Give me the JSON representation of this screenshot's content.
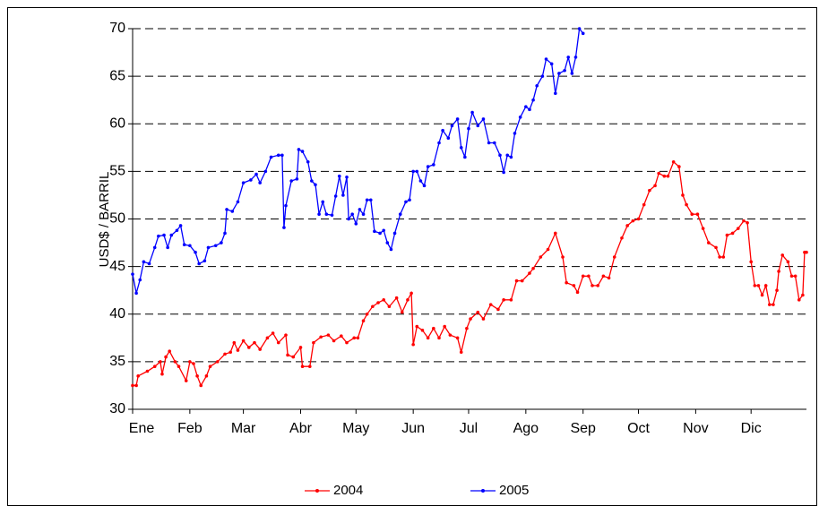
{
  "chart_data": {
    "type": "line",
    "y_label": "USD$ / BARRIL",
    "xlim": [
      0,
      365
    ],
    "xticks": [
      {
        "value": 0,
        "label": "Ene"
      },
      {
        "value": 31,
        "label": "Feb"
      },
      {
        "value": 60,
        "label": "Mar"
      },
      {
        "value": 91,
        "label": "Abr"
      },
      {
        "value": 121,
        "label": "May"
      },
      {
        "value": 152,
        "label": "Jun"
      },
      {
        "value": 182,
        "label": "Jul"
      },
      {
        "value": 213,
        "label": "Ago"
      },
      {
        "value": 244,
        "label": "Sep"
      },
      {
        "value": 274,
        "label": "Oct"
      },
      {
        "value": 305,
        "label": "Nov"
      },
      {
        "value": 335,
        "label": "Dic"
      }
    ],
    "ylim": [
      30,
      70
    ],
    "yticks": [
      30,
      35,
      40,
      45,
      50,
      55,
      60,
      65,
      70
    ],
    "grid": true,
    "legend": "bottom",
    "series": [
      {
        "name": "2004",
        "color": "#ff0000",
        "x": [
          0,
          2,
          3,
          8,
          12,
          15,
          16,
          18,
          20,
          23,
          25,
          29,
          31,
          33,
          35,
          37,
          40,
          42,
          46,
          50,
          53,
          55,
          57,
          60,
          63,
          66,
          69,
          73,
          76,
          79,
          83,
          84,
          87,
          91,
          92,
          96,
          98,
          102,
          106,
          109,
          113,
          116,
          120,
          122,
          125,
          127,
          130,
          133,
          136,
          139,
          143,
          146,
          149,
          151,
          152,
          154,
          157,
          160,
          163,
          166,
          169,
          172,
          176,
          178,
          181,
          183,
          187,
          190,
          194,
          198,
          201,
          205,
          208,
          211,
          215,
          217,
          221,
          225,
          229,
          233,
          235,
          239,
          241,
          244,
          247,
          249,
          252,
          255,
          258,
          261,
          265,
          268,
          271,
          274,
          277,
          280,
          283,
          285,
          288,
          290,
          293,
          296,
          298,
          300,
          303,
          306,
          309,
          312,
          316,
          318,
          320,
          322,
          325,
          328,
          331,
          333,
          335,
          337,
          339,
          341,
          343,
          345,
          347,
          349,
          350,
          352,
          355,
          357,
          359,
          361,
          363,
          364,
          365
        ],
        "values": [
          32.5,
          32.5,
          33.5,
          34,
          34.5,
          35,
          33.7,
          35.5,
          36.1,
          35,
          34.5,
          33,
          35,
          34.8,
          33.5,
          32.5,
          33.5,
          34.5,
          35,
          35.8,
          36,
          37,
          36.2,
          37.2,
          36.5,
          37,
          36.3,
          37.5,
          38,
          37,
          37.8,
          35.7,
          35.5,
          36.5,
          34.5,
          34.5,
          37,
          37.6,
          37.8,
          37.2,
          37.7,
          37,
          37.5,
          37.5,
          39.3,
          40,
          40.8,
          41.2,
          41.5,
          40.8,
          41.7,
          40.2,
          41.5,
          42.2,
          36.8,
          38.7,
          38.3,
          37.5,
          38.5,
          37.5,
          38.7,
          37.8,
          37.5,
          36,
          38.5,
          39.5,
          40.2,
          39.5,
          41,
          40.5,
          41.5,
          41.5,
          43.5,
          43.5,
          44.3,
          44.8,
          46,
          46.8,
          48.5,
          46,
          43.3,
          43,
          42.3,
          44,
          44,
          43,
          43,
          44,
          43.8,
          46,
          48,
          49.3,
          49.8,
          50,
          51.5,
          53,
          53.5,
          54.8,
          54.5,
          54.5,
          56,
          55.5,
          52.5,
          51.5,
          50.5,
          50.5,
          49,
          47.5,
          47,
          46,
          46,
          48.3,
          48.5,
          49,
          49.8,
          49.6,
          45.5,
          43,
          43,
          42,
          43,
          41,
          41,
          42.5,
          44.5,
          46.2,
          45.5,
          44,
          44,
          41.5,
          42,
          46.5,
          46.5
        ]
      },
      {
        "name": "2005",
        "color": "#0000ff",
        "x": [
          0,
          2,
          4,
          6,
          9,
          12,
          14,
          17,
          19,
          21,
          24,
          26,
          28,
          31,
          34,
          36,
          39,
          41,
          45,
          48,
          50,
          51,
          54,
          57,
          60,
          64,
          67,
          69,
          72,
          75,
          79,
          81,
          82,
          83,
          86,
          89,
          90,
          92,
          95,
          97,
          99,
          101,
          103,
          105,
          108,
          110,
          112,
          114,
          116,
          117,
          119,
          121,
          123,
          125,
          127,
          129,
          131,
          134,
          136,
          138,
          140,
          142,
          145,
          148,
          150,
          152,
          154,
          156,
          158,
          160,
          163,
          166,
          168,
          171,
          173,
          176,
          178,
          180,
          182,
          184,
          187,
          190,
          193,
          196,
          199,
          201,
          203,
          205,
          207,
          210,
          213,
          215,
          217,
          219,
          222,
          224,
          227,
          229,
          231,
          234,
          236,
          238,
          240,
          242,
          244
        ],
        "values": [
          44.2,
          42.2,
          43.6,
          45.5,
          45.3,
          47,
          48.2,
          48.3,
          47,
          48.3,
          48.8,
          49.3,
          47.3,
          47.2,
          46.5,
          45.3,
          45.6,
          47,
          47.2,
          47.5,
          48.5,
          51,
          50.8,
          51.8,
          53.8,
          54.1,
          54.7,
          53.8,
          55,
          56.5,
          56.7,
          56.7,
          49.1,
          51.4,
          54,
          54.2,
          57.3,
          57.1,
          56,
          54,
          53.6,
          50.5,
          51.8,
          50.5,
          50.4,
          52.4,
          54.5,
          52.5,
          54.4,
          50,
          50.5,
          49.5,
          51,
          50.5,
          52,
          52,
          48.7,
          48.5,
          48.8,
          47.5,
          46.8,
          48.5,
          50.5,
          51.8,
          52,
          55,
          55,
          54,
          53.5,
          55.5,
          55.7,
          58,
          59.3,
          58.5,
          59.8,
          60.5,
          57.5,
          56.5,
          59.5,
          61.2,
          59.8,
          60.5,
          58,
          58,
          56.7,
          54.9,
          56.7,
          56.5,
          59,
          60.7,
          61.8,
          61.5,
          62.5,
          64,
          65,
          66.8,
          66.3,
          63.2,
          65.3,
          65.6,
          67,
          65.3,
          67,
          70,
          69.5
        ]
      }
    ]
  }
}
